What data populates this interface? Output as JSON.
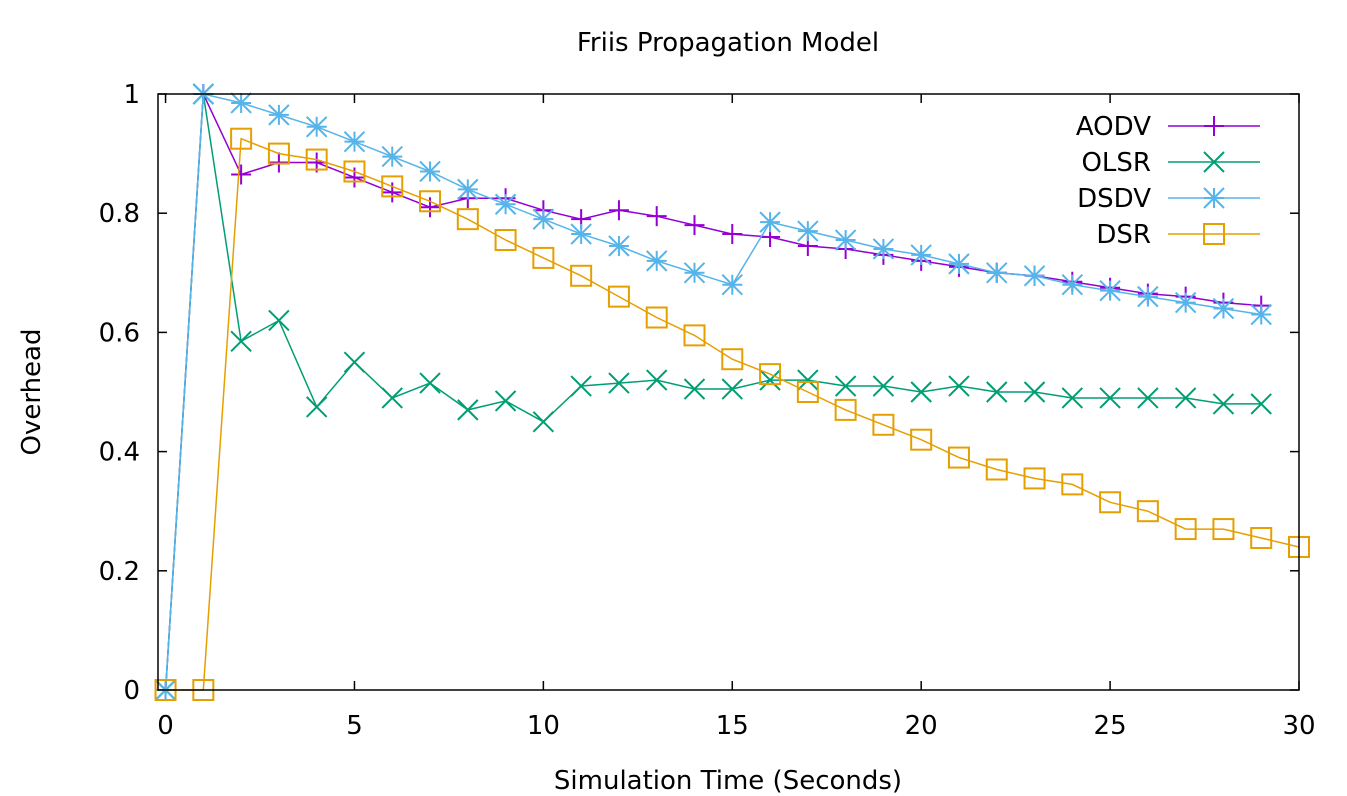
{
  "chart_data": {
    "type": "line",
    "title": "Friis Propagation Model",
    "xlabel": "Simulation Time (Seconds)",
    "ylabel": "Overhead",
    "xlim": [
      -0.2,
      30
    ],
    "ylim": [
      0,
      1
    ],
    "xticks": [
      0,
      5,
      10,
      15,
      20,
      25,
      30
    ],
    "xtick_labels": [
      "0",
      "5",
      "10",
      "15",
      "20",
      "25",
      "30"
    ],
    "yticks": [
      0,
      0.2,
      0.4,
      0.6,
      0.8,
      1
    ],
    "ytick_labels": [
      "0",
      "0.2",
      "0.4",
      "0.6",
      "0.8",
      "1"
    ],
    "grid": false,
    "legend_position": "top-right",
    "series": [
      {
        "name": "AODV",
        "color": "#9400d3",
        "marker": "plus",
        "x": [
          0,
          1,
          2,
          3,
          4,
          5,
          6,
          7,
          8,
          9,
          10,
          11,
          12,
          13,
          14,
          15,
          16,
          17,
          18,
          19,
          20,
          21,
          22,
          23,
          24,
          25,
          26,
          27,
          28,
          29
        ],
        "y": [
          0,
          1,
          0.865,
          0.885,
          0.885,
          0.86,
          0.835,
          0.81,
          0.825,
          0.825,
          0.805,
          0.79,
          0.805,
          0.795,
          0.78,
          0.765,
          0.76,
          0.745,
          0.74,
          0.73,
          0.72,
          0.71,
          0.7,
          0.695,
          0.685,
          0.675,
          0.665,
          0.66,
          0.65,
          0.645
        ]
      },
      {
        "name": "OLSR",
        "color": "#009e73",
        "marker": "cross",
        "x": [
          0,
          1,
          2,
          3,
          4,
          5,
          6,
          7,
          8,
          9,
          10,
          11,
          12,
          13,
          14,
          15,
          16,
          17,
          18,
          19,
          20,
          21,
          22,
          23,
          24,
          25,
          26,
          27,
          28,
          29
        ],
        "y": [
          0,
          1,
          0.585,
          0.62,
          0.475,
          0.55,
          0.49,
          0.515,
          0.47,
          0.485,
          0.45,
          0.51,
          0.515,
          0.52,
          0.505,
          0.505,
          0.52,
          0.52,
          0.51,
          0.51,
          0.5,
          0.51,
          0.5,
          0.5,
          0.49,
          0.49,
          0.49,
          0.49,
          0.48,
          0.48
        ]
      },
      {
        "name": "DSDV",
        "color": "#56b4e9",
        "marker": "star",
        "x": [
          0,
          1,
          2,
          3,
          4,
          5,
          6,
          7,
          8,
          9,
          10,
          11,
          12,
          13,
          14,
          15,
          16,
          17,
          18,
          19,
          20,
          21,
          22,
          23,
          24,
          25,
          26,
          27,
          28,
          29
        ],
        "y": [
          0,
          1,
          0.985,
          0.965,
          0.945,
          0.92,
          0.895,
          0.87,
          0.84,
          0.815,
          0.79,
          0.765,
          0.745,
          0.72,
          0.7,
          0.68,
          0.785,
          0.77,
          0.755,
          0.74,
          0.73,
          0.715,
          0.7,
          0.695,
          0.68,
          0.67,
          0.66,
          0.65,
          0.64,
          0.63
        ]
      },
      {
        "name": "DSR",
        "color": "#e69f00",
        "marker": "square",
        "x": [
          0,
          1,
          2,
          3,
          4,
          5,
          6,
          7,
          8,
          9,
          10,
          11,
          12,
          13,
          14,
          15,
          16,
          17,
          18,
          19,
          20,
          21,
          22,
          23,
          24,
          25,
          26,
          27,
          28,
          29,
          30
        ],
        "y": [
          0,
          0,
          0.925,
          0.9,
          0.89,
          0.87,
          0.845,
          0.82,
          0.79,
          0.755,
          0.725,
          0.695,
          0.66,
          0.625,
          0.595,
          0.555,
          0.53,
          0.5,
          0.47,
          0.445,
          0.42,
          0.39,
          0.37,
          0.355,
          0.345,
          0.315,
          0.3,
          0.27,
          0.27,
          0.255,
          0.24
        ]
      }
    ]
  }
}
